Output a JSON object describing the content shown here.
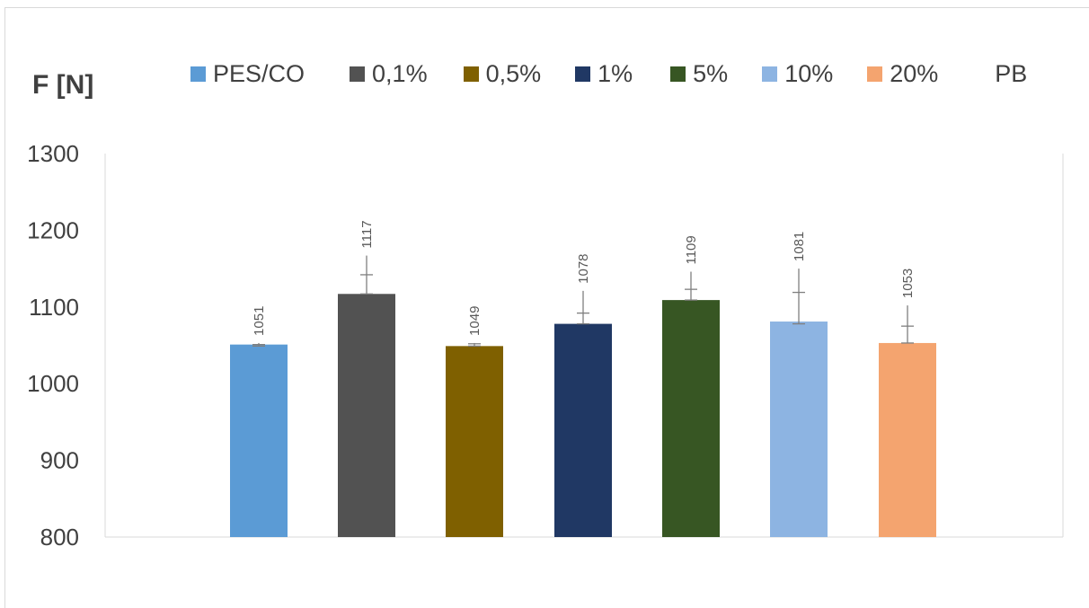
{
  "chart_data": {
    "type": "bar",
    "title": "",
    "ylabel": "F [N]",
    "xlabel": "",
    "ylim": [
      800,
      1300
    ],
    "yticks": [
      800,
      900,
      1000,
      1100,
      1200,
      1300
    ],
    "categories": [
      "PES/CO",
      "0,1%",
      "0,5%",
      "1%",
      "5%",
      "10%",
      "20%"
    ],
    "values": [
      1051,
      1117,
      1049,
      1078,
      1109,
      1081,
      1053
    ],
    "error_upper": [
      1053,
      1142,
      1053,
      1092,
      1123,
      1119,
      1075
    ],
    "error_lower": [
      1049,
      1117,
      1049,
      1078,
      1109,
      1078,
      1053
    ],
    "error_cap": [
      1051,
      1142,
      1052,
      1092,
      1123,
      1119,
      1075
    ],
    "errbar_top": [
      1053,
      1167,
      1053,
      1121,
      1146,
      1150,
      1102
    ],
    "colors": [
      "#5b9bd5",
      "#525252",
      "#7f6000",
      "#203864",
      "#375623",
      "#8db4e2",
      "#f4a46f"
    ],
    "legend": [
      "PES/CO",
      "0,1%",
      "0,5%",
      "1%",
      "5%",
      "10%",
      "20%",
      "PB"
    ],
    "legend_position": "top",
    "grid": false
  }
}
